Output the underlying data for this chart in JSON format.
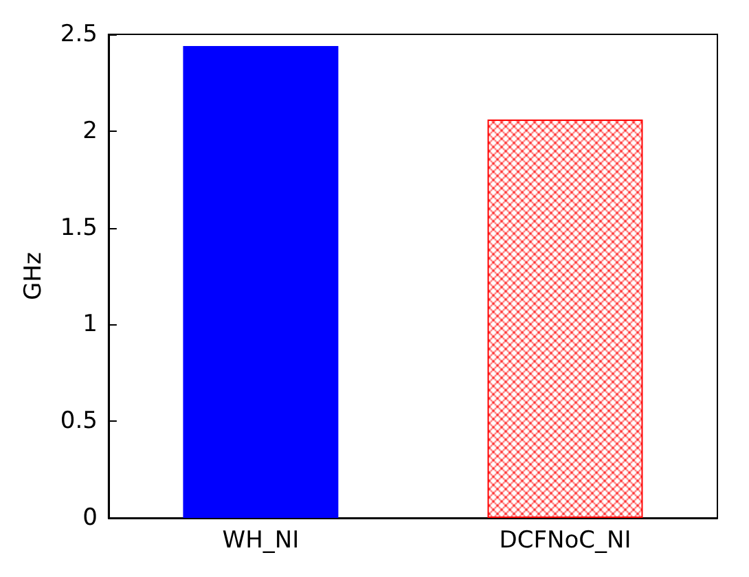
{
  "chart_data": {
    "type": "bar",
    "ylabel": "GHz",
    "categories": [
      "WH_NI",
      "DCFNoC_NI"
    ],
    "values": [
      2.44,
      2.06
    ],
    "colors": [
      "#0000ff",
      "#ff0000"
    ],
    "ylim": [
      0,
      2.5
    ],
    "yticks": [
      0,
      0.5,
      1,
      1.5,
      2,
      2.5
    ],
    "grid": false
  }
}
